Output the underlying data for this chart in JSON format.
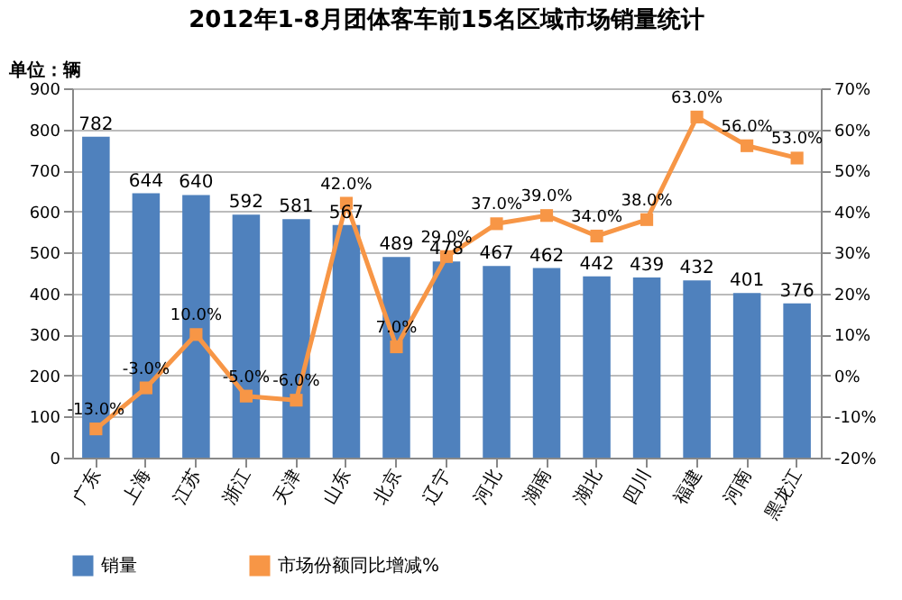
{
  "chart_data": {
    "type": "bar",
    "title": "2012年1-8月团体客车前15名区域市场销量统计",
    "annotations": [
      "单位：辆"
    ],
    "categories": [
      "广东",
      "上海",
      "江苏",
      "浙江",
      "天津",
      "山东",
      "北京",
      "辽宁",
      "河北",
      "湖南",
      "湖北",
      "四川",
      "福建",
      "河南",
      "黑龙江"
    ],
    "series": [
      {
        "name": "销量",
        "color": "#4f81bd",
        "values": [
          782,
          644,
          640,
          592,
          581,
          567,
          489,
          478,
          467,
          462,
          442,
          439,
          432,
          401,
          376
        ]
      },
      {
        "name": "市场份额同比增减%",
        "type": "line",
        "axis": "y2",
        "color": "#f79646",
        "marker": "square",
        "values": [
          -13,
          -3,
          10,
          -5,
          -6,
          42,
          7,
          29,
          37,
          39,
          34,
          38,
          63,
          56,
          53
        ],
        "value_labels": [
          "-13.0%",
          "-3.0%",
          "10.0%",
          "-5.0%",
          "-6.0%",
          "42.0%",
          "7.0%",
          "29.0%",
          "37.0%",
          "39.0%",
          "34.0%",
          "38.0%",
          "63.0%",
          "56.0%",
          "53.0%"
        ]
      }
    ],
    "data_labels": true,
    "ylim": [
      0,
      900
    ],
    "yticks": [
      0,
      100,
      200,
      300,
      400,
      500,
      600,
      700,
      800,
      900
    ],
    "y2lim": [
      -20,
      70
    ],
    "y2ticks": [
      {
        "value": -20,
        "label": "-20%"
      },
      {
        "value": -10,
        "label": "-10%"
      },
      {
        "value": 0,
        "label": "0%"
      },
      {
        "value": 10,
        "label": "10%"
      },
      {
        "value": 20,
        "label": "20%"
      },
      {
        "value": 30,
        "label": "30%"
      },
      {
        "value": 40,
        "label": "40%"
      },
      {
        "value": 50,
        "label": "50%"
      },
      {
        "value": 60,
        "label": "60%"
      },
      {
        "value": 70,
        "label": "70%"
      }
    ],
    "grid": "y",
    "legend": "bottom"
  }
}
